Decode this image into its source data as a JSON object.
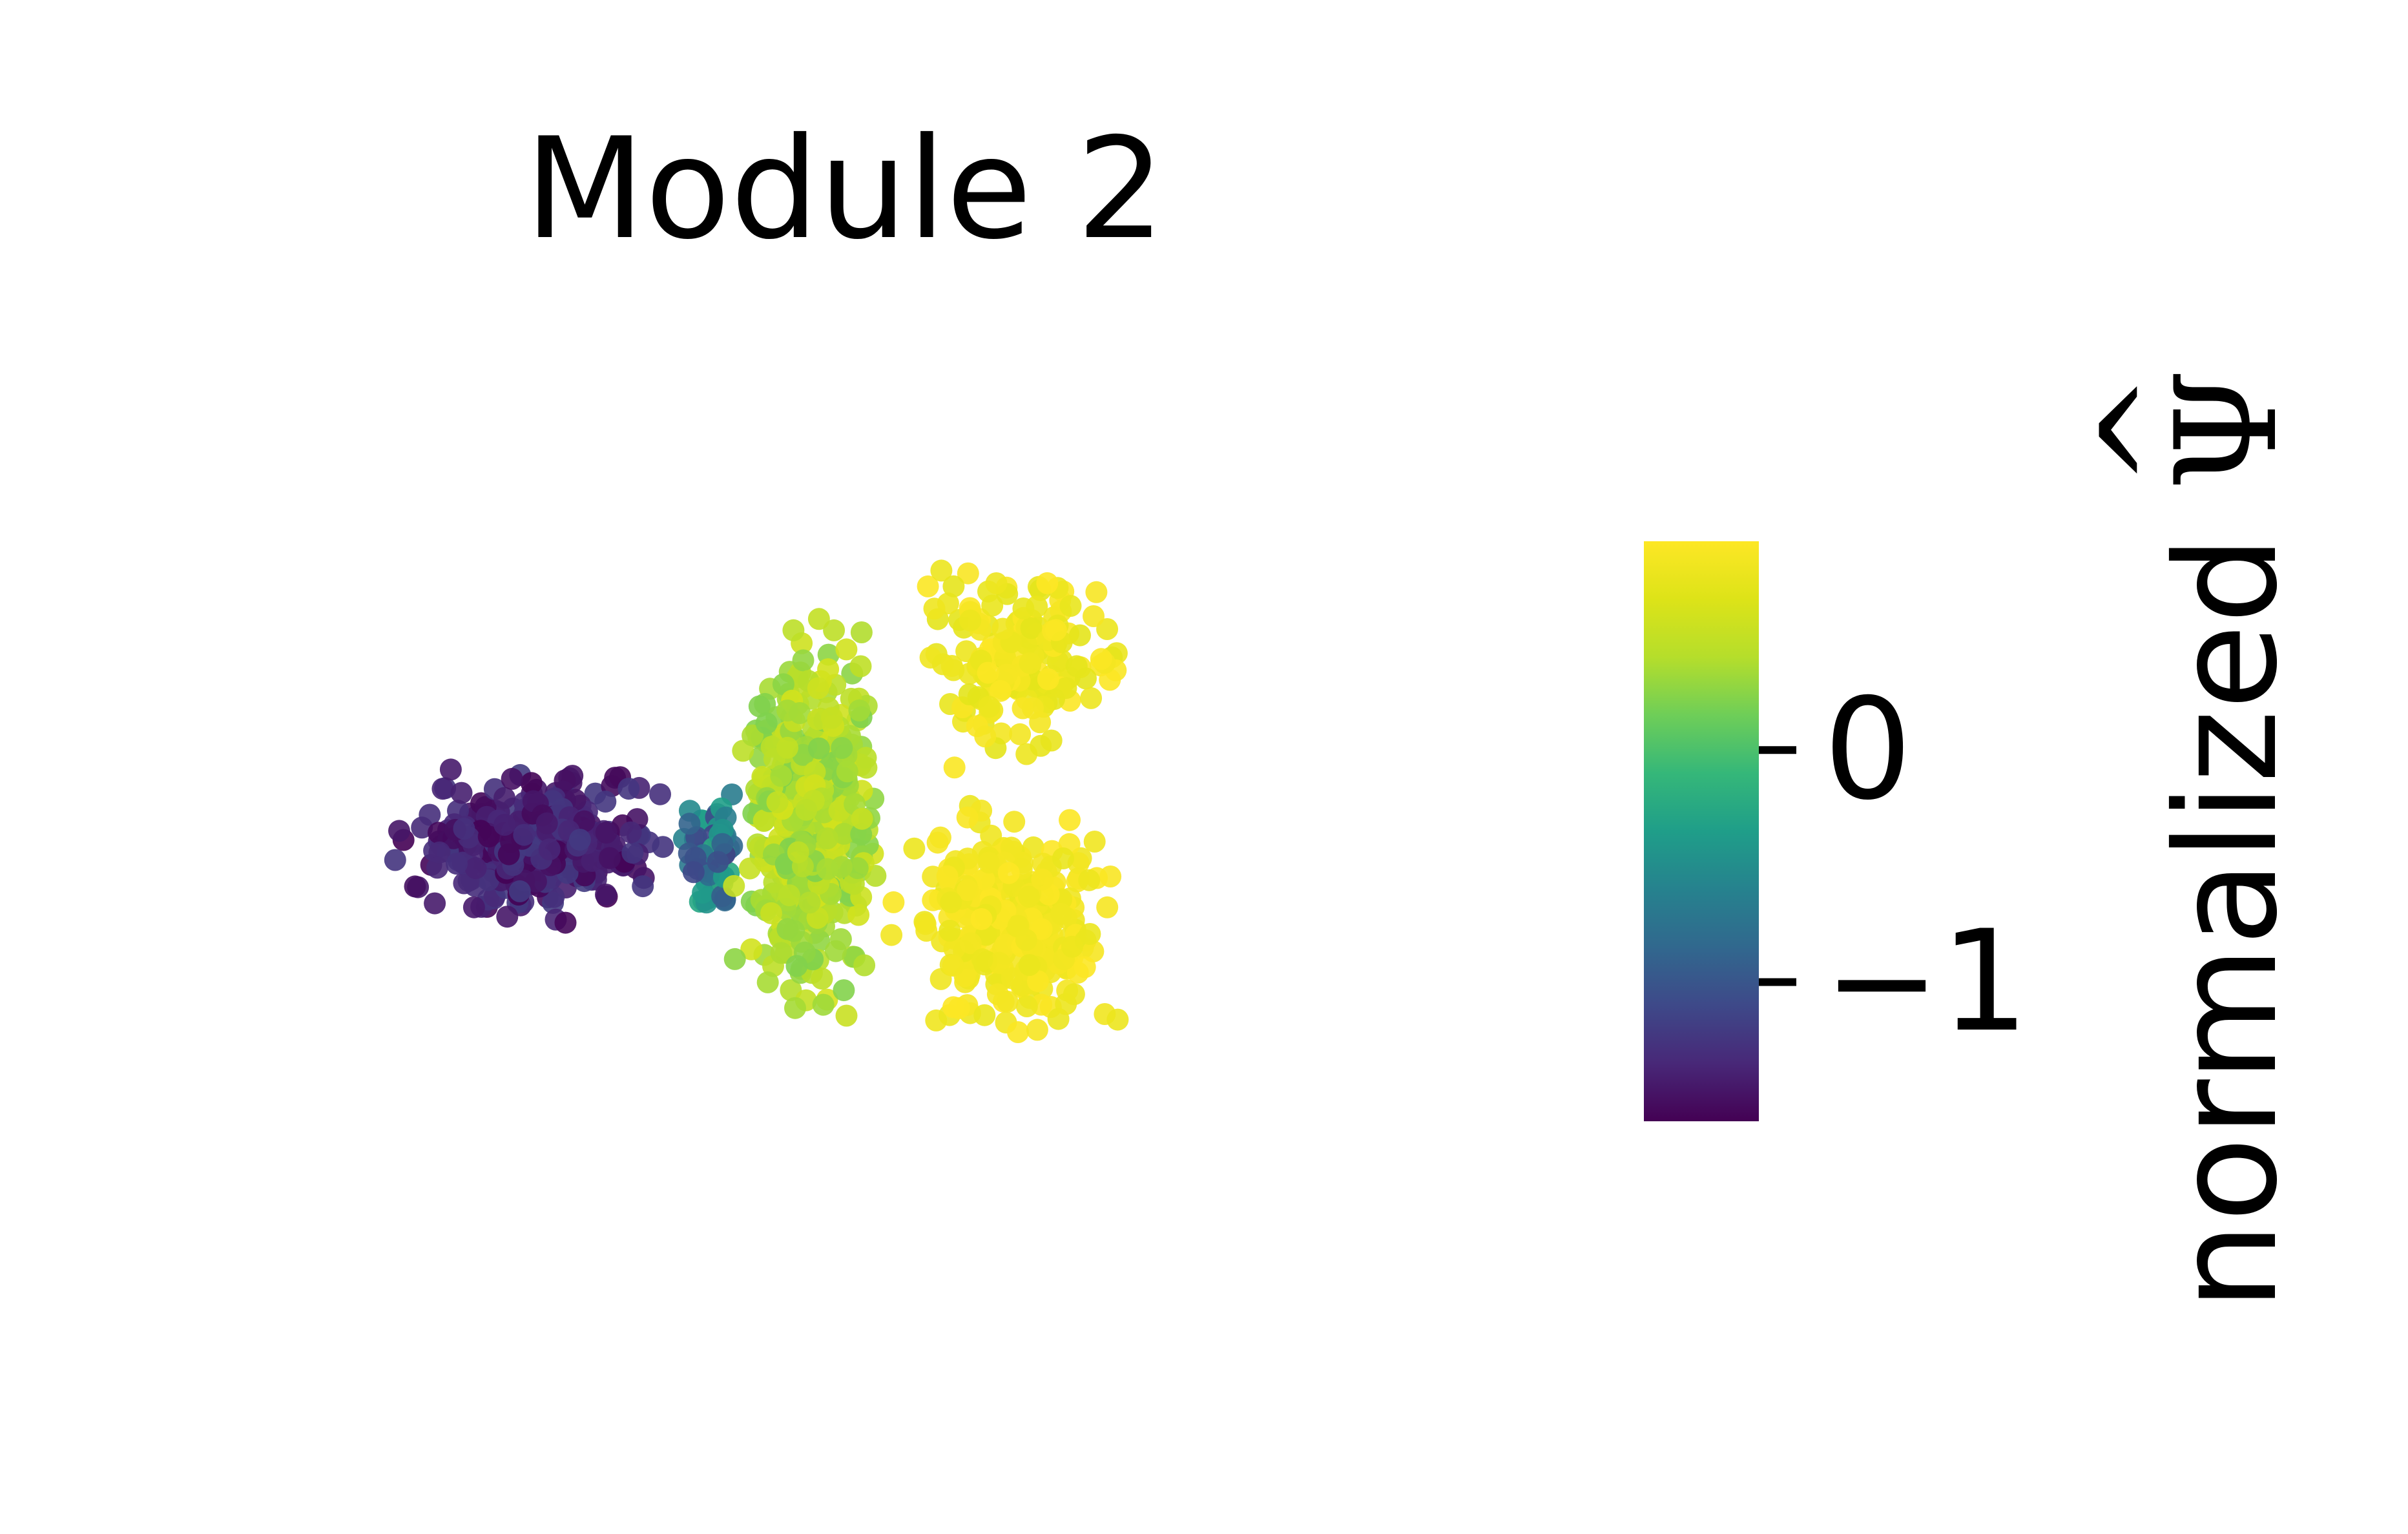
{
  "chart_data": {
    "type": "scatter",
    "title": "Module 2",
    "xlabel": "",
    "ylabel": "",
    "axes_visible": false,
    "grid": false,
    "colormap": "viridis",
    "colorbar": {
      "label_text": "normalized ",
      "label_symbol": "Ψ",
      "label_accent": "^",
      "ticks": [
        {
          "value": 0,
          "label": "0"
        },
        {
          "value": -1,
          "label": "−1"
        }
      ],
      "range": [
        -1.6,
        0.9
      ],
      "placement": "right"
    },
    "clusters": [
      {
        "region": "left",
        "x_range": [
          0.0,
          0.42
        ],
        "y_range": [
          0.4,
          0.75
        ],
        "value_range": [
          -1.6,
          -1.2
        ],
        "count": 300
      },
      {
        "region": "center-left",
        "x_range": [
          0.38,
          0.48
        ],
        "y_range": [
          0.45,
          0.75
        ],
        "value_range": [
          -1.2,
          -0.2
        ],
        "count": 60
      },
      {
        "region": "center",
        "x_range": [
          0.45,
          0.68
        ],
        "y_range": [
          0.1,
          0.95
        ],
        "value_range": [
          0.2,
          0.6
        ],
        "count": 450
      },
      {
        "region": "upper-right",
        "x_range": [
          0.68,
          1.0
        ],
        "y_range": [
          0.0,
          0.45
        ],
        "value_range": [
          0.7,
          0.9
        ],
        "count": 160
      },
      {
        "region": "lower-right",
        "x_range": [
          0.66,
          1.0
        ],
        "y_range": [
          0.45,
          1.0
        ],
        "value_range": [
          0.75,
          0.9
        ],
        "count": 280
      }
    ]
  }
}
